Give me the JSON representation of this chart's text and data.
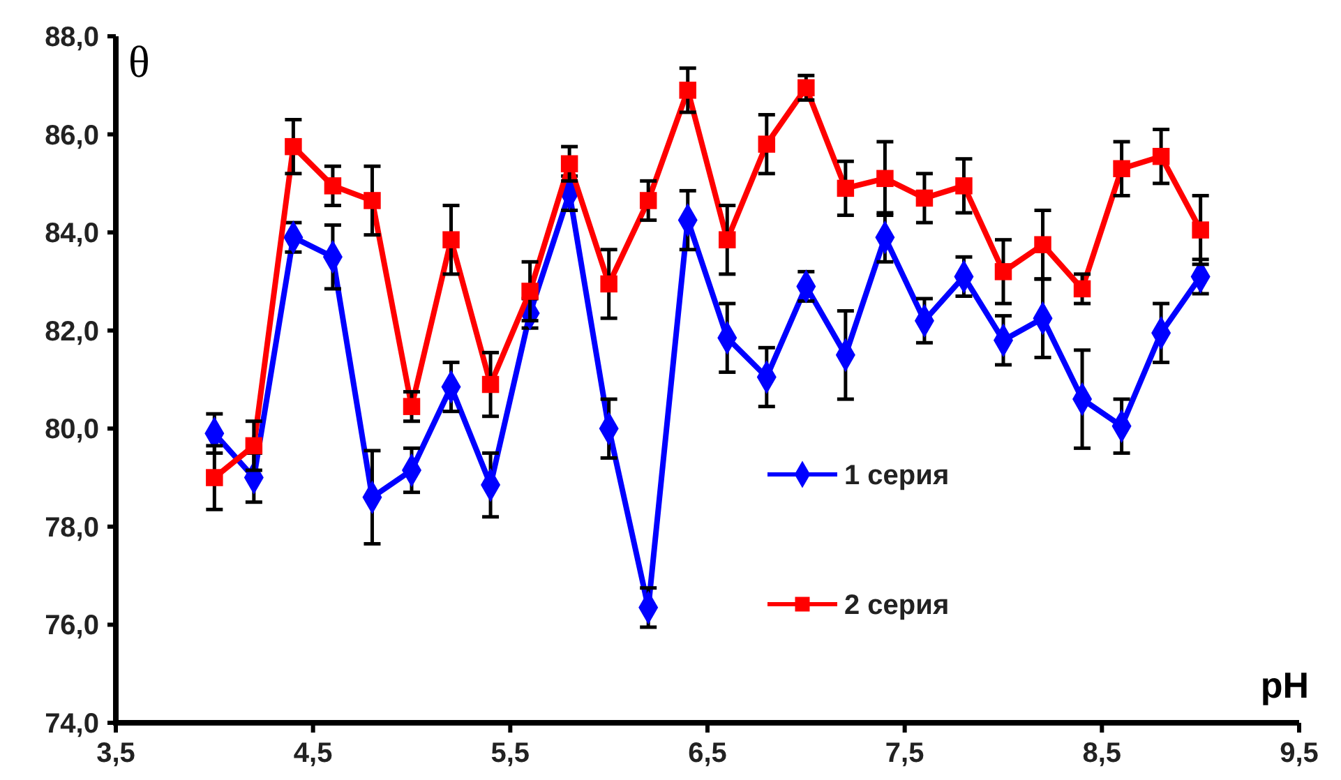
{
  "chart_data": {
    "type": "line",
    "xlabel": "pH",
    "ylabel": "θ",
    "x": [
      4.0,
      4.2,
      4.4,
      4.6,
      4.8,
      5.0,
      5.2,
      5.4,
      5.6,
      5.8,
      6.0,
      6.2,
      6.4,
      6.6,
      6.8,
      7.0,
      7.2,
      7.4,
      7.6,
      7.8,
      8.0,
      8.2,
      8.4,
      8.6,
      8.8,
      9.0
    ],
    "series": [
      {
        "name": "1 серия",
        "color": "#0000ff",
        "marker": "diamond",
        "values": [
          79.9,
          79.0,
          83.9,
          83.5,
          78.6,
          79.15,
          80.85,
          78.85,
          82.35,
          84.8,
          80.0,
          76.35,
          84.25,
          81.85,
          81.05,
          82.9,
          81.5,
          83.9,
          82.2,
          83.1,
          81.8,
          82.25,
          80.6,
          80.05,
          81.95,
          83.1
        ],
        "errors": [
          0.4,
          0.5,
          0.3,
          0.65,
          0.95,
          0.45,
          0.5,
          0.65,
          0.3,
          0.35,
          0.6,
          0.4,
          0.6,
          0.7,
          0.6,
          0.3,
          0.9,
          0.5,
          0.45,
          0.4,
          0.5,
          0.8,
          1.0,
          0.55,
          0.6,
          0.35
        ]
      },
      {
        "name": "2 серия",
        "color": "#ff0000",
        "marker": "square",
        "values": [
          79.0,
          79.65,
          85.75,
          84.95,
          84.65,
          80.45,
          83.85,
          80.9,
          82.8,
          85.4,
          82.95,
          84.65,
          86.9,
          83.85,
          85.8,
          86.95,
          84.9,
          85.1,
          84.7,
          84.95,
          83.2,
          83.75,
          82.85,
          85.3,
          85.55,
          84.05
        ],
        "errors": [
          0.65,
          0.5,
          0.55,
          0.4,
          0.7,
          0.3,
          0.7,
          0.65,
          0.6,
          0.35,
          0.7,
          0.4,
          0.45,
          0.7,
          0.6,
          0.25,
          0.55,
          0.75,
          0.5,
          0.55,
          0.65,
          0.7,
          0.3,
          0.55,
          0.55,
          0.7
        ]
      }
    ],
    "xlim": [
      3.5,
      9.5
    ],
    "xticks": [
      {
        "value": 3.5,
        "label": "3,5"
      },
      {
        "value": 4.5,
        "label": "4,5"
      },
      {
        "value": 5.5,
        "label": "5,5"
      },
      {
        "value": 6.5,
        "label": "6,5"
      },
      {
        "value": 7.5,
        "label": "7,5"
      },
      {
        "value": 8.5,
        "label": "8,5"
      },
      {
        "value": 9.5,
        "label": "9,5"
      }
    ],
    "ylim": [
      74,
      88
    ],
    "yticks": [
      {
        "value": 74,
        "label": "74,0"
      },
      {
        "value": 76,
        "label": "76,0"
      },
      {
        "value": 78,
        "label": "78,0"
      },
      {
        "value": 80,
        "label": "80,0"
      },
      {
        "value": 82,
        "label": "82,0"
      },
      {
        "value": 84,
        "label": "84,0"
      },
      {
        "value": 86,
        "label": "86,0"
      },
      {
        "value": 88,
        "label": "88,0"
      }
    ],
    "grid": false,
    "legend": "bottom"
  }
}
